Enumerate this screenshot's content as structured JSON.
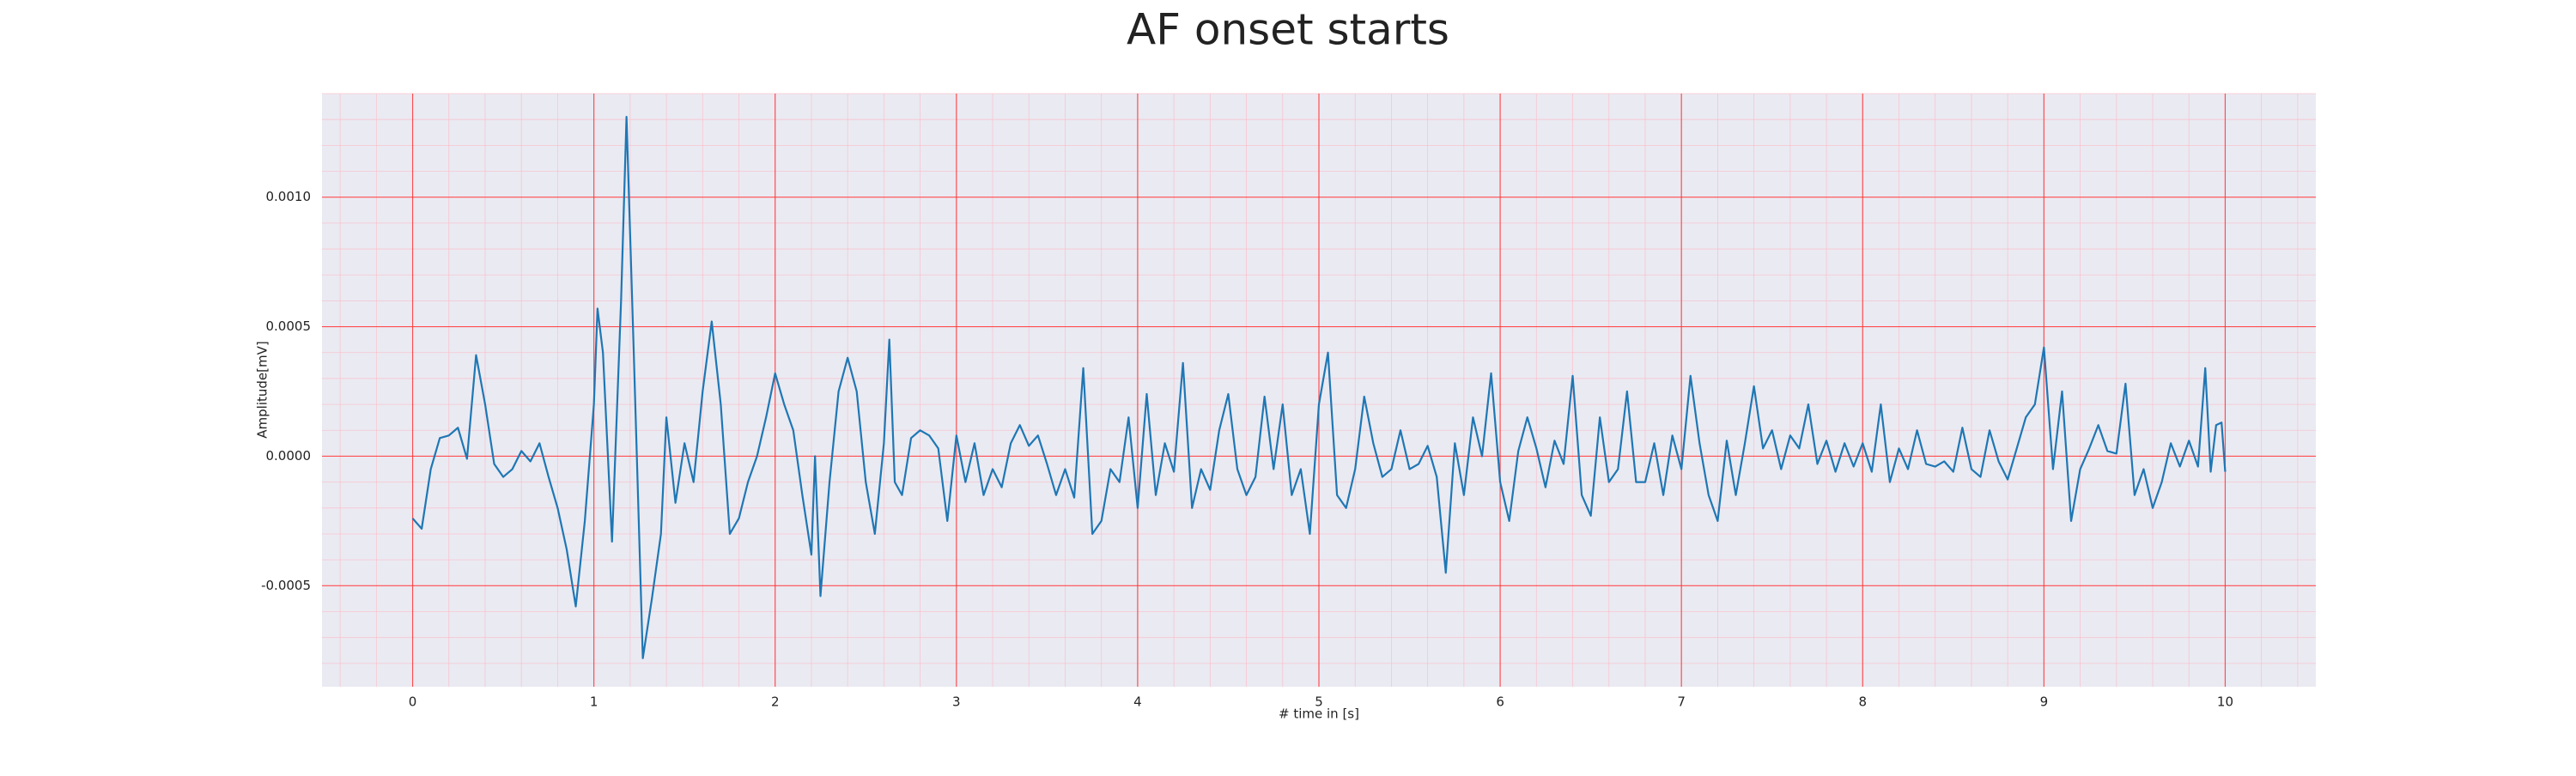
{
  "chart_data": {
    "type": "line",
    "title": "AF onset starts",
    "x_label": "# time in [s]",
    "y_label": "Amplitude[mV]",
    "color": "#1f77b4",
    "grid": true,
    "minor_grid": true,
    "xlim": [
      -0.5,
      10.5
    ],
    "ylim": [
      -0.00089,
      0.0014
    ],
    "xticks": [
      0,
      1,
      2,
      3,
      4,
      5,
      6,
      7,
      8,
      9,
      10
    ],
    "yticks": [
      {
        "value": -0.0005,
        "label": "-0.0005"
      },
      {
        "value": 0,
        "label": "0.0000"
      },
      {
        "value": 0.0005,
        "label": "0.0005"
      },
      {
        "value": 0.001,
        "label": "0.0010"
      }
    ],
    "x": [
      0,
      0.05,
      0.1,
      0.15,
      0.2,
      0.25,
      0.3,
      0.35,
      0.4,
      0.45,
      0.5,
      0.55,
      0.6,
      0.65,
      0.7,
      0.75,
      0.8,
      0.85,
      0.9,
      0.95,
      1.0,
      1.02,
      1.05,
      1.1,
      1.15,
      1.18,
      1.22,
      1.27,
      1.32,
      1.37,
      1.4,
      1.45,
      1.5,
      1.55,
      1.6,
      1.65,
      1.7,
      1.75,
      1.8,
      1.85,
      1.9,
      1.95,
      2.0,
      2.05,
      2.1,
      2.15,
      2.2,
      2.22,
      2.25,
      2.3,
      2.35,
      2.4,
      2.45,
      2.5,
      2.55,
      2.6,
      2.63,
      2.66,
      2.7,
      2.75,
      2.8,
      2.85,
      2.9,
      2.95,
      3.0,
      3.05,
      3.1,
      3.15,
      3.2,
      3.25,
      3.3,
      3.35,
      3.4,
      3.45,
      3.5,
      3.55,
      3.6,
      3.65,
      3.7,
      3.75,
      3.8,
      3.85,
      3.9,
      3.95,
      4.0,
      4.05,
      4.1,
      4.15,
      4.2,
      4.25,
      4.3,
      4.35,
      4.4,
      4.45,
      4.5,
      4.55,
      4.6,
      4.65,
      4.7,
      4.75,
      4.8,
      4.85,
      4.9,
      4.95,
      5.0,
      5.05,
      5.1,
      5.15,
      5.2,
      5.25,
      5.3,
      5.35,
      5.4,
      5.45,
      5.5,
      5.55,
      5.6,
      5.65,
      5.7,
      5.75,
      5.8,
      5.85,
      5.9,
      5.95,
      6.0,
      6.05,
      6.1,
      6.15,
      6.2,
      6.25,
      6.3,
      6.35,
      6.4,
      6.45,
      6.5,
      6.55,
      6.6,
      6.65,
      6.7,
      6.75,
      6.8,
      6.85,
      6.9,
      6.95,
      7.0,
      7.05,
      7.1,
      7.15,
      7.2,
      7.25,
      7.3,
      7.35,
      7.4,
      7.45,
      7.5,
      7.55,
      7.6,
      7.65,
      7.7,
      7.75,
      7.8,
      7.85,
      7.9,
      7.95,
      8.0,
      8.05,
      8.1,
      8.15,
      8.2,
      8.25,
      8.3,
      8.35,
      8.4,
      8.45,
      8.5,
      8.55,
      8.6,
      8.65,
      8.7,
      8.75,
      8.8,
      8.85,
      8.9,
      8.95,
      9.0,
      9.05,
      9.1,
      9.15,
      9.2,
      9.25,
      9.3,
      9.35,
      9.4,
      9.45,
      9.5,
      9.55,
      9.6,
      9.65,
      9.7,
      9.75,
      9.8,
      9.85,
      9.89,
      9.92,
      9.95,
      9.98,
      10.0
    ],
    "values": [
      -0.00024,
      -0.00028,
      -5e-05,
      7e-05,
      8e-05,
      0.00011,
      -1e-05,
      0.00039,
      0.0002,
      -3e-05,
      -8e-05,
      -5e-05,
      2e-05,
      -2e-05,
      5e-05,
      -8e-05,
      -0.0002,
      -0.00036,
      -0.00058,
      -0.00025,
      0.0002,
      0.00057,
      0.0004,
      -0.00033,
      0.0006,
      0.00131,
      0.0004,
      -0.00078,
      -0.00055,
      -0.0003,
      0.00015,
      -0.00018,
      5e-05,
      -0.0001,
      0.00025,
      0.00052,
      0.0002,
      -0.0003,
      -0.00024,
      -0.0001,
      0.0,
      0.00015,
      0.00032,
      0.0002,
      0.0001,
      -0.00015,
      -0.00038,
      0.0,
      -0.00054,
      -0.0001,
      0.00025,
      0.00038,
      0.00025,
      -0.0001,
      -0.0003,
      5e-05,
      0.00045,
      -0.0001,
      -0.00015,
      7e-05,
      0.0001,
      8e-05,
      3e-05,
      -0.00025,
      8e-05,
      -0.0001,
      5e-05,
      -0.00015,
      -5e-05,
      -0.00012,
      5e-05,
      0.00012,
      4e-05,
      8e-05,
      -3e-05,
      -0.00015,
      -5e-05,
      -0.00016,
      0.00034,
      -0.0003,
      -0.00025,
      -5e-05,
      -0.0001,
      0.00015,
      -0.0002,
      0.00024,
      -0.00015,
      5e-05,
      -6e-05,
      0.00036,
      -0.0002,
      -5e-05,
      -0.00013,
      0.0001,
      0.00024,
      -5e-05,
      -0.00015,
      -8e-05,
      0.00023,
      -5e-05,
      0.0002,
      -0.00015,
      -5e-05,
      -0.0003,
      0.0002,
      0.0004,
      -0.00015,
      -0.0002,
      -5e-05,
      0.00023,
      5e-05,
      -8e-05,
      -5e-05,
      0.0001,
      -5e-05,
      -3e-05,
      4e-05,
      -8e-05,
      -0.00045,
      5e-05,
      -0.00015,
      0.00015,
      0.0,
      0.00032,
      -0.0001,
      -0.00025,
      2e-05,
      0.00015,
      3e-05,
      -0.00012,
      6e-05,
      -3e-05,
      0.00031,
      -0.00015,
      -0.00023,
      0.00015,
      -0.0001,
      -5e-05,
      0.00025,
      -0.0001,
      -0.0001,
      5e-05,
      -0.00015,
      8e-05,
      -5e-05,
      0.00031,
      5e-05,
      -0.00015,
      -0.00025,
      6e-05,
      -0.00015,
      5e-05,
      0.00027,
      3e-05,
      0.0001,
      -5e-05,
      8e-05,
      3e-05,
      0.0002,
      -3e-05,
      6e-05,
      -6e-05,
      5e-05,
      -4e-05,
      5e-05,
      -6e-05,
      0.0002,
      -0.0001,
      3e-05,
      -5e-05,
      0.0001,
      -3e-05,
      -4e-05,
      -2e-05,
      -6e-05,
      0.00011,
      -5e-05,
      -8e-05,
      0.0001,
      -2e-05,
      -9e-05,
      3e-05,
      0.00015,
      0.0002,
      0.00042,
      -5e-05,
      0.00025,
      -0.00025,
      -5e-05,
      3e-05,
      0.00012,
      2e-05,
      1e-05,
      0.00028,
      -0.00015,
      -5e-05,
      -0.0002,
      -0.0001,
      5e-05,
      -4e-05,
      6e-05,
      -4e-05,
      0.00034,
      -6e-05,
      0.00012,
      0.00013,
      -6e-05
    ]
  }
}
